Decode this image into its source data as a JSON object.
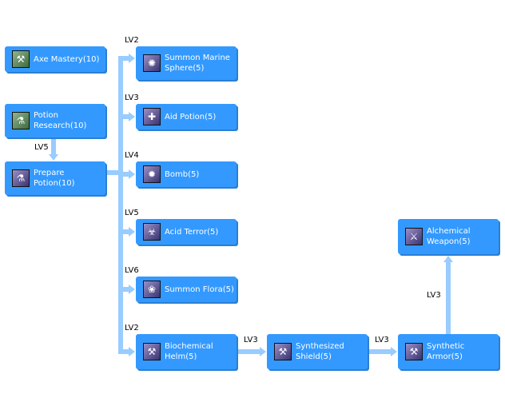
{
  "skills": [
    {
      "id": "axe",
      "label": "Axe Mastery(10)",
      "icon": "axe-icon",
      "type": "passive"
    },
    {
      "id": "potres",
      "label": "Potion Research(10)",
      "icon": "potion-icon",
      "type": "passive"
    },
    {
      "id": "prep",
      "label": "Prepare Potion(10)",
      "icon": "flask-icon",
      "type": "active"
    },
    {
      "id": "marine",
      "label": "Summon Marine Sphere(5)",
      "icon": "sphere-icon",
      "type": "active"
    },
    {
      "id": "aid",
      "label": "Aid Potion(5)",
      "icon": "potion-icon",
      "type": "active"
    },
    {
      "id": "bomb",
      "label": "Bomb(5)",
      "icon": "bomb-icon",
      "type": "active"
    },
    {
      "id": "acid",
      "label": "Acid Terror(5)",
      "icon": "acid-icon",
      "type": "active"
    },
    {
      "id": "flora",
      "label": "Summon Flora(5)",
      "icon": "flora-icon",
      "type": "active"
    },
    {
      "id": "helm",
      "label": "Biochemical Helm(5)",
      "icon": "helm-icon",
      "type": "active"
    },
    {
      "id": "shield",
      "label": "Synthesized Shield(5)",
      "icon": "shield-icon",
      "type": "active"
    },
    {
      "id": "armor",
      "label": "Synthetic Armor(5)",
      "icon": "armor-icon",
      "type": "active"
    },
    {
      "id": "weapon",
      "label": "Alchemical Weapon(5)",
      "icon": "weapon-icon",
      "type": "active"
    }
  ],
  "requirements": {
    "prep": "LV5",
    "marine": "LV2",
    "aid": "LV3",
    "bomb": "LV4",
    "acid": "LV5",
    "flora": "LV6",
    "helm": "LV2",
    "shield": "LV3",
    "armor": "LV3",
    "weapon": "LV3"
  },
  "colors": {
    "box": "#3399ff",
    "connector": "#99ccff",
    "text": "#ffffff"
  }
}
